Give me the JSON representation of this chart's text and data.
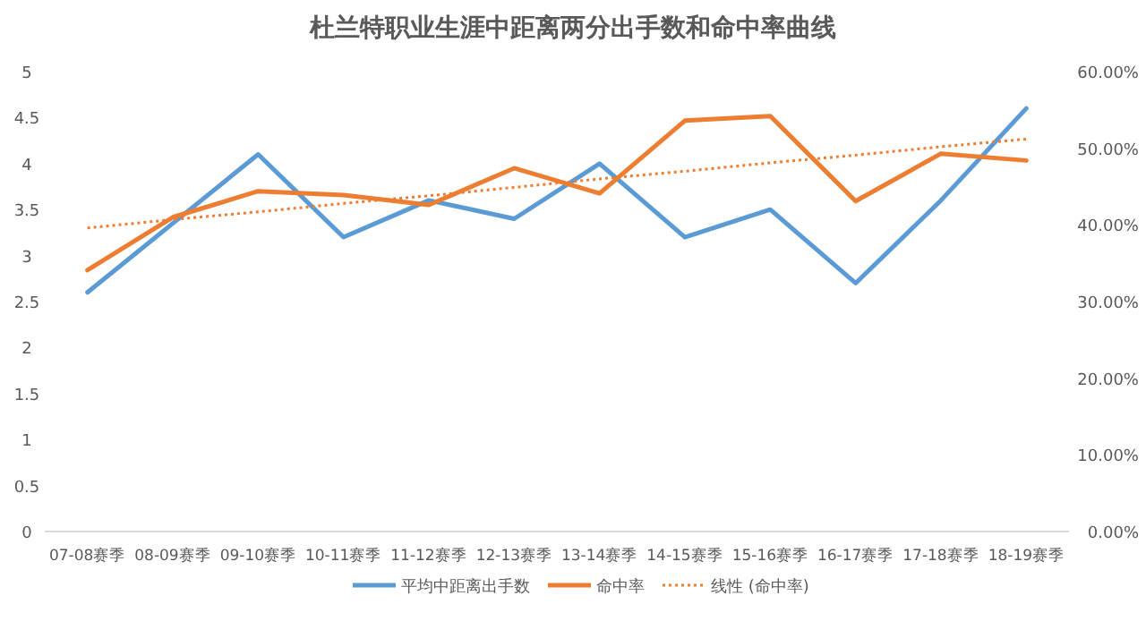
{
  "chart_data": {
    "type": "line",
    "title": "杜兰特职业生涯中距离两分出手数和命中率曲线",
    "categories": [
      "07-08赛季",
      "08-09赛季",
      "09-10赛季",
      "10-11赛季",
      "11-12赛季",
      "12-13赛季",
      "13-14赛季",
      "14-15赛季",
      "15-16赛季",
      "16-17赛季",
      "17-18赛季",
      "18-19赛季"
    ],
    "series": [
      {
        "name": "平均中距离出手数",
        "color": "#5b9bd5",
        "values": [
          2.6,
          3.35,
          4.1,
          3.2,
          3.6,
          3.4,
          4.0,
          3.2,
          3.5,
          2.7,
          3.6,
          4.6
        ]
      },
      {
        "name": "命中率",
        "color": "#ed7d31",
        "axis": "y2",
        "values": [
          34.1,
          41.0,
          44.4,
          43.9,
          42.6,
          47.4,
          44.1,
          53.6,
          54.2,
          43.1,
          49.3,
          48.4
        ]
      },
      {
        "name": "线性 (命中率)",
        "color": "#ed7d31",
        "axis": "y2",
        "line_style": "dotted",
        "values": [
          39.6,
          40.7,
          41.7,
          42.8,
          43.8,
          44.9,
          46.0,
          47.0,
          48.1,
          49.1,
          50.2,
          51.2
        ]
      }
    ],
    "ylim": [
      0,
      5
    ],
    "yticks": [
      0,
      0.5,
      1,
      1.5,
      2,
      2.5,
      3,
      3.5,
      4,
      4.5,
      5
    ],
    "y2lim": [
      0,
      60
    ],
    "y2ticks": [
      {
        "value": 0,
        "label": "0.00%"
      },
      {
        "value": 10,
        "label": "10.00%"
      },
      {
        "value": 20,
        "label": "20.00%"
      },
      {
        "value": 30,
        "label": "30.00%"
      },
      {
        "value": 40,
        "label": "40.00%"
      },
      {
        "value": 50,
        "label": "50.00%"
      },
      {
        "value": 60,
        "label": "60.00%"
      }
    ],
    "grid": false,
    "legend": "bottom",
    "marker": "none",
    "line_style": "solid"
  }
}
